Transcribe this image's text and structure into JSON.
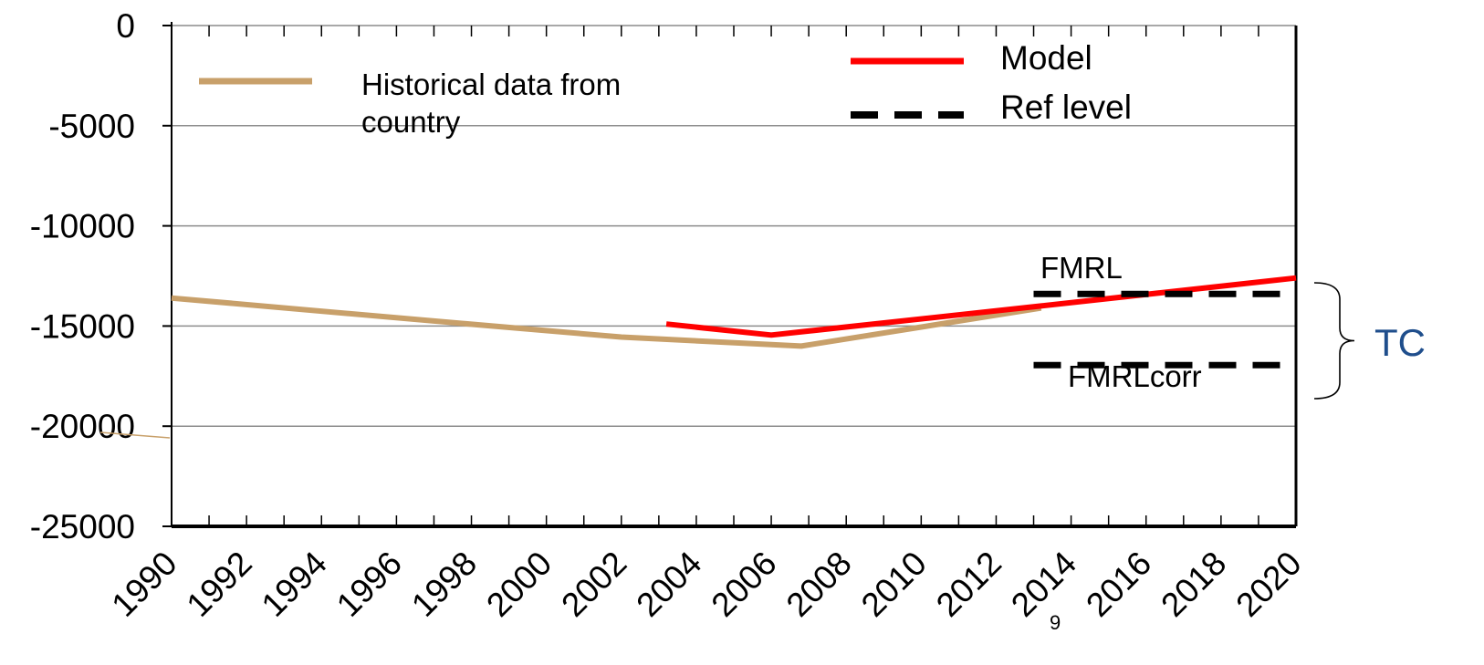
{
  "chart_data": {
    "type": "line",
    "x": [
      1990,
      1991,
      1992,
      1993,
      1994,
      1995,
      1996,
      1997,
      1998,
      1999,
      2000,
      2001,
      2002,
      2003,
      2004,
      2005,
      2006,
      2007,
      2008,
      2009,
      2010,
      2011,
      2012,
      2013,
      2014,
      2015,
      2016,
      2017,
      2018,
      2019,
      2020
    ],
    "x_tick_labels": [
      "1990",
      "1992",
      "1994",
      "1996",
      "1998",
      "2000",
      "2002",
      "2004",
      "2006",
      "2008",
      "2010",
      "2012",
      "2014",
      "2016",
      "2018",
      "2020"
    ],
    "ylim": [
      -25000,
      0
    ],
    "yticks": [
      0,
      -5000,
      -10000,
      -15000,
      -20000,
      -25000
    ],
    "ytick_labels": [
      "0",
      "-5000",
      "-10000",
      "-15000",
      "-20000",
      "-25000"
    ],
    "grid": true,
    "series": [
      {
        "name": "Historical data from country",
        "color": "#c8a06a",
        "style": "solid",
        "points": [
          [
            1990,
            -13600
          ],
          [
            1997,
            -14750
          ],
          [
            2002,
            -15550
          ],
          [
            2006.8,
            -16000
          ],
          [
            2013.2,
            -14100
          ]
        ]
      },
      {
        "name": "Model",
        "color": "#ff0000",
        "style": "solid",
        "points": [
          [
            2003.2,
            -14900
          ],
          [
            2006,
            -15450
          ],
          [
            2013.2,
            -14000
          ],
          [
            2020,
            -12600
          ]
        ]
      },
      {
        "name": "Ref level",
        "color": "#000000",
        "style": "dashed",
        "points": [
          [
            2013,
            -13400
          ],
          [
            2020,
            -13400
          ]
        ]
      },
      {
        "name": "Ref level",
        "color": "#000000",
        "style": "dashed",
        "points": [
          [
            2013,
            -16950
          ],
          [
            2020,
            -16950
          ]
        ]
      }
    ],
    "legend": {
      "placement": "top",
      "entries": [
        {
          "label": "Historical data from",
          "label2": "country",
          "color": "#c8a06a",
          "style": "solid"
        },
        {
          "label": "Model",
          "color": "#ff0000",
          "style": "solid"
        },
        {
          "label": "Ref level",
          "color": "#000000",
          "style": "dashed"
        }
      ]
    },
    "annotations": [
      {
        "text": "FMRL"
      },
      {
        "text": "FMRLcorr"
      },
      {
        "text": "TC"
      },
      {
        "text": "9"
      }
    ]
  }
}
